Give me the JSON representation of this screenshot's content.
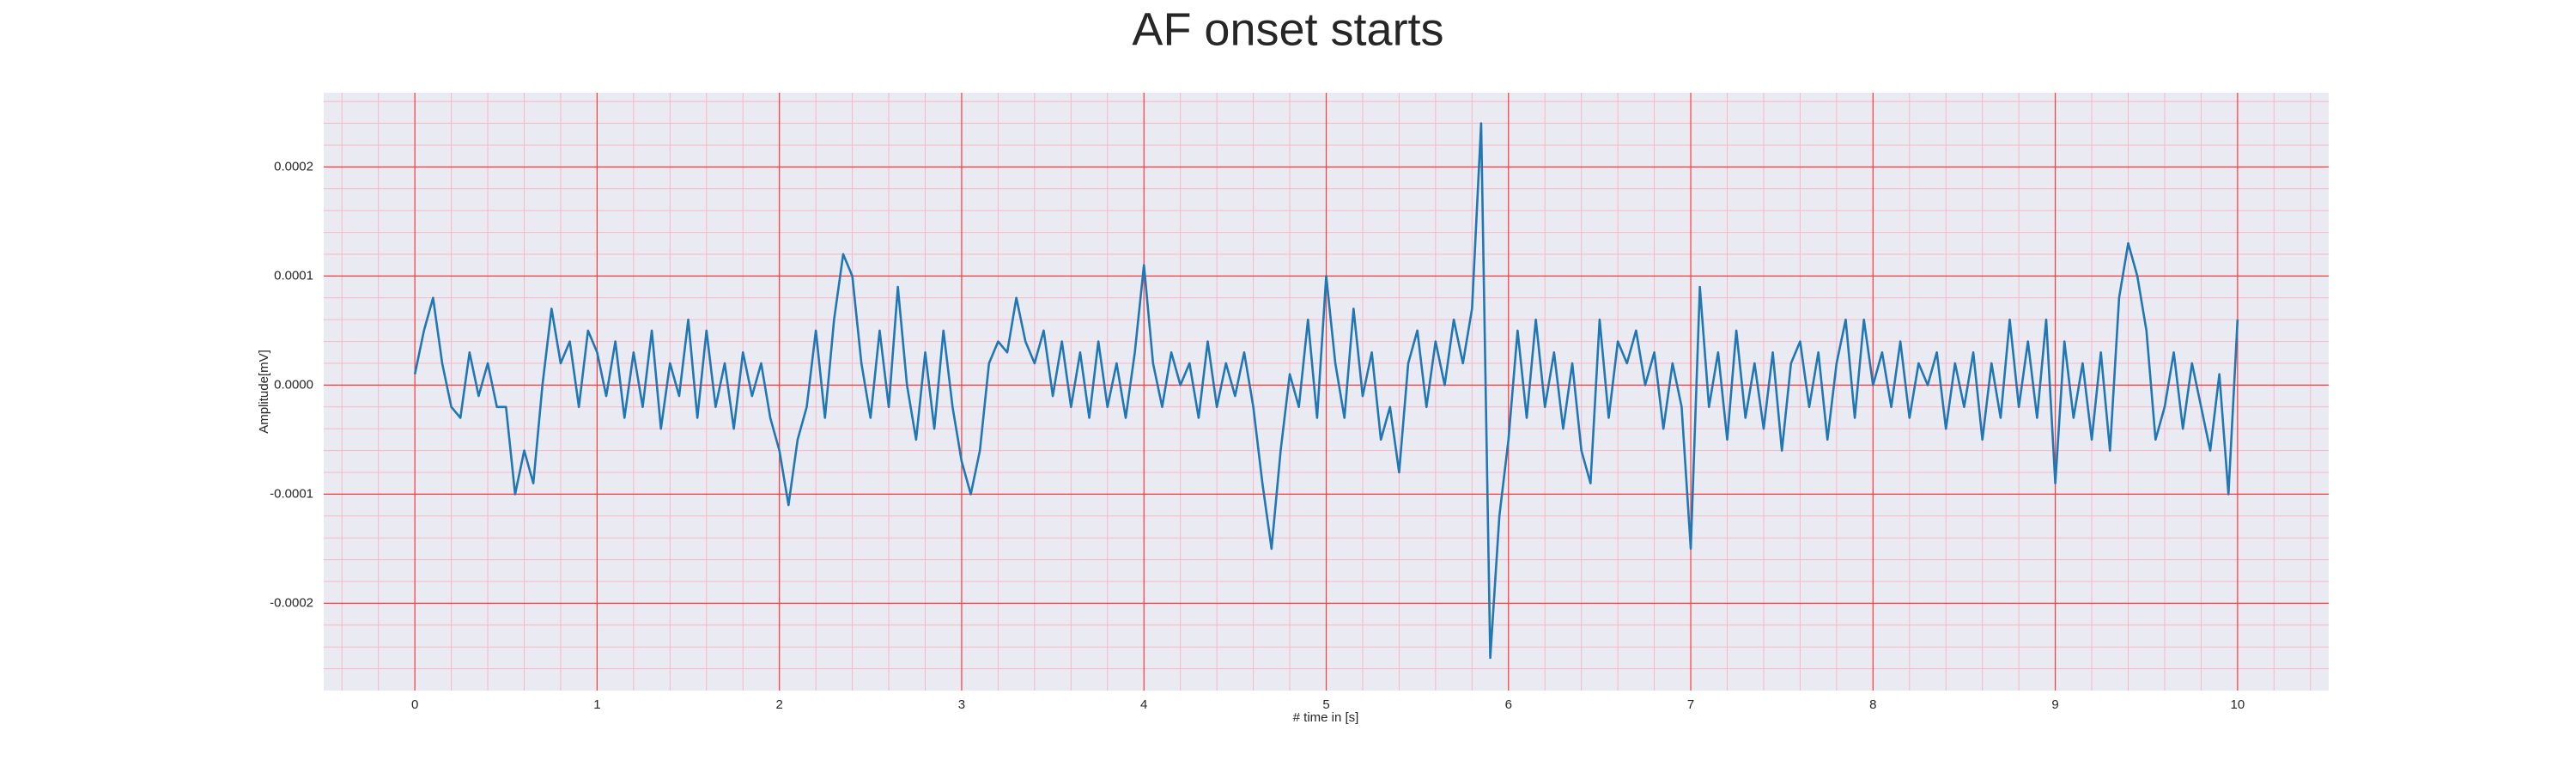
{
  "chart_data": {
    "type": "line",
    "title": "AF onset starts",
    "xlabel": "# time in [s]",
    "ylabel": "Amplitude[mV]",
    "xlim": [
      -0.5,
      10.5
    ],
    "ylim": [
      -0.00028,
      0.000268
    ],
    "xticks": [
      0,
      1,
      2,
      3,
      4,
      5,
      6,
      7,
      8,
      9,
      10
    ],
    "yticks": [
      -0.0002,
      -0.0001,
      {
        "value": 0,
        "label": "0.0000"
      },
      0.0001,
      0.0002
    ],
    "grid": true,
    "grid_color": "#ff3b3b",
    "minor_grid_color": "#f7b8c6",
    "background": "#eaeaf2",
    "x": [
      0,
      0.05,
      0.1,
      0.15,
      0.2,
      0.25,
      0.3,
      0.35,
      0.4,
      0.45,
      0.5,
      0.55,
      0.6,
      0.65,
      0.7,
      0.75,
      0.8,
      0.85,
      0.9,
      0.95,
      1,
      1.05,
      1.1,
      1.15,
      1.2,
      1.25,
      1.3,
      1.35,
      1.4,
      1.45,
      1.5,
      1.55,
      1.6,
      1.65,
      1.7,
      1.75,
      1.8,
      1.85,
      1.9,
      1.95,
      2,
      2.05,
      2.1,
      2.15,
      2.2,
      2.25,
      2.3,
      2.35,
      2.4,
      2.45,
      2.5,
      2.55,
      2.6,
      2.65,
      2.7,
      2.75,
      2.8,
      2.85,
      2.9,
      2.95,
      3,
      3.05,
      3.1,
      3.15,
      3.2,
      3.25,
      3.3,
      3.35,
      3.4,
      3.45,
      3.5,
      3.55,
      3.6,
      3.65,
      3.7,
      3.75,
      3.8,
      3.85,
      3.9,
      3.95,
      4,
      4.05,
      4.1,
      4.15,
      4.2,
      4.25,
      4.3,
      4.35,
      4.4,
      4.45,
      4.5,
      4.55,
      4.6,
      4.65,
      4.7,
      4.75,
      4.8,
      4.85,
      4.9,
      4.95,
      5,
      5.05,
      5.1,
      5.15,
      5.2,
      5.25,
      5.3,
      5.35,
      5.4,
      5.45,
      5.5,
      5.55,
      5.6,
      5.65,
      5.7,
      5.75,
      5.8,
      5.85,
      5.9,
      5.95,
      6,
      6.05,
      6.1,
      6.15,
      6.2,
      6.25,
      6.3,
      6.35,
      6.4,
      6.45,
      6.5,
      6.55,
      6.6,
      6.65,
      6.7,
      6.75,
      6.8,
      6.85,
      6.9,
      6.95,
      7,
      7.05,
      7.1,
      7.15,
      7.2,
      7.25,
      7.3,
      7.35,
      7.4,
      7.45,
      7.5,
      7.55,
      7.6,
      7.65,
      7.7,
      7.75,
      7.8,
      7.85,
      7.9,
      7.95,
      8,
      8.05,
      8.1,
      8.15,
      8.2,
      8.25,
      8.3,
      8.35,
      8.4,
      8.45,
      8.5,
      8.55,
      8.6,
      8.65,
      8.7,
      8.75,
      8.8,
      8.85,
      8.9,
      8.95,
      9,
      9.05,
      9.1,
      9.15,
      9.2,
      9.25,
      9.3,
      9.35,
      9.4,
      9.45,
      9.5,
      9.55,
      9.6,
      9.65,
      9.7,
      9.75,
      9.8,
      9.85,
      9.9,
      9.95,
      10
    ],
    "series": [
      {
        "color": "#1f77b4",
        "values": [
          1e-05,
          5e-05,
          8e-05,
          2e-05,
          -2e-05,
          -3e-05,
          3e-05,
          -1e-05,
          2e-05,
          -2e-05,
          -2e-05,
          -0.0001,
          -6e-05,
          -9e-05,
          0,
          7e-05,
          2e-05,
          4e-05,
          -2e-05,
          5e-05,
          3e-05,
          -1e-05,
          4e-05,
          -3e-05,
          3e-05,
          -2e-05,
          5e-05,
          -4e-05,
          2e-05,
          -1e-05,
          6e-05,
          -3e-05,
          5e-05,
          -2e-05,
          2e-05,
          -4e-05,
          3e-05,
          -1e-05,
          2e-05,
          -3e-05,
          -6e-05,
          -0.00011,
          -5e-05,
          -2e-05,
          5e-05,
          -3e-05,
          6e-05,
          0.00012,
          0.0001,
          2e-05,
          -3e-05,
          5e-05,
          -2e-05,
          9e-05,
          0,
          -5e-05,
          3e-05,
          -4e-05,
          5e-05,
          -2e-05,
          -7e-05,
          -0.0001,
          -6e-05,
          2e-05,
          4e-05,
          3e-05,
          8e-05,
          4e-05,
          2e-05,
          5e-05,
          -1e-05,
          4e-05,
          -2e-05,
          3e-05,
          -3e-05,
          4e-05,
          -2e-05,
          2e-05,
          -3e-05,
          3e-05,
          0.00011,
          2e-05,
          -2e-05,
          3e-05,
          0,
          2e-05,
          -3e-05,
          4e-05,
          -2e-05,
          2e-05,
          -1e-05,
          3e-05,
          -2e-05,
          -9e-05,
          -0.00015,
          -6e-05,
          1e-05,
          -2e-05,
          6e-05,
          -3e-05,
          0.0001,
          2e-05,
          -3e-05,
          7e-05,
          -1e-05,
          3e-05,
          -5e-05,
          -2e-05,
          -8e-05,
          2e-05,
          5e-05,
          -2e-05,
          4e-05,
          0,
          6e-05,
          2e-05,
          7e-05,
          0.00024,
          -0.00025,
          -0.00012,
          -5e-05,
          5e-05,
          -3e-05,
          6e-05,
          -2e-05,
          3e-05,
          -4e-05,
          2e-05,
          -6e-05,
          -9e-05,
          6e-05,
          -3e-05,
          4e-05,
          2e-05,
          5e-05,
          0,
          3e-05,
          -4e-05,
          2e-05,
          -2e-05,
          -0.00015,
          9e-05,
          -2e-05,
          3e-05,
          -5e-05,
          5e-05,
          -3e-05,
          2e-05,
          -4e-05,
          3e-05,
          -6e-05,
          2e-05,
          4e-05,
          -2e-05,
          3e-05,
          -5e-05,
          2e-05,
          6e-05,
          -3e-05,
          6e-05,
          0,
          3e-05,
          -2e-05,
          4e-05,
          -3e-05,
          2e-05,
          0,
          3e-05,
          -4e-05,
          2e-05,
          -2e-05,
          3e-05,
          -5e-05,
          2e-05,
          -3e-05,
          6e-05,
          -2e-05,
          4e-05,
          -3e-05,
          6e-05,
          -9e-05,
          4e-05,
          -3e-05,
          2e-05,
          -5e-05,
          3e-05,
          -6e-05,
          8e-05,
          0.00013,
          0.0001,
          5e-05,
          -5e-05,
          -2e-05,
          3e-05,
          -4e-05,
          2e-05,
          -2e-05,
          -6e-05,
          1e-05,
          -0.0001,
          6e-05
        ]
      }
    ]
  }
}
